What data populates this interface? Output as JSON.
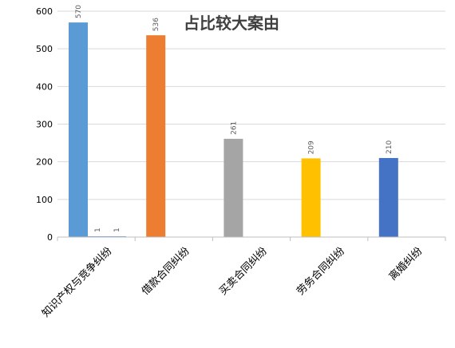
{
  "chart_data": {
    "type": "bar",
    "title": "占比较大案由",
    "categories": [
      "知识产权与竞争纠纷",
      "借款合同纠纷",
      "买卖合同纠纷",
      "劳务合同纠纷",
      "离婚纠纷"
    ],
    "series": [
      {
        "values": [
          570,
          536,
          261,
          209,
          210
        ],
        "colors": [
          "#5b9bd5",
          "#ed7d31",
          "#a5a5a5",
          "#ffc000",
          "#4472c4"
        ]
      },
      {
        "values": [
          1,
          null,
          null,
          null,
          null
        ],
        "colors": [
          "#5b9bd5",
          null,
          null,
          null,
          null
        ]
      },
      {
        "values": [
          1,
          null,
          null,
          null,
          null
        ],
        "colors": [
          "#5b9bd5",
          null,
          null,
          null,
          null
        ]
      }
    ],
    "yticks": [
      0,
      100,
      200,
      300,
      400,
      500,
      600
    ],
    "ylim": [
      0,
      600
    ],
    "grid": true,
    "legend": "none",
    "gridline_color": "#d9d9d9",
    "axis_color": "#bfbfbf"
  }
}
